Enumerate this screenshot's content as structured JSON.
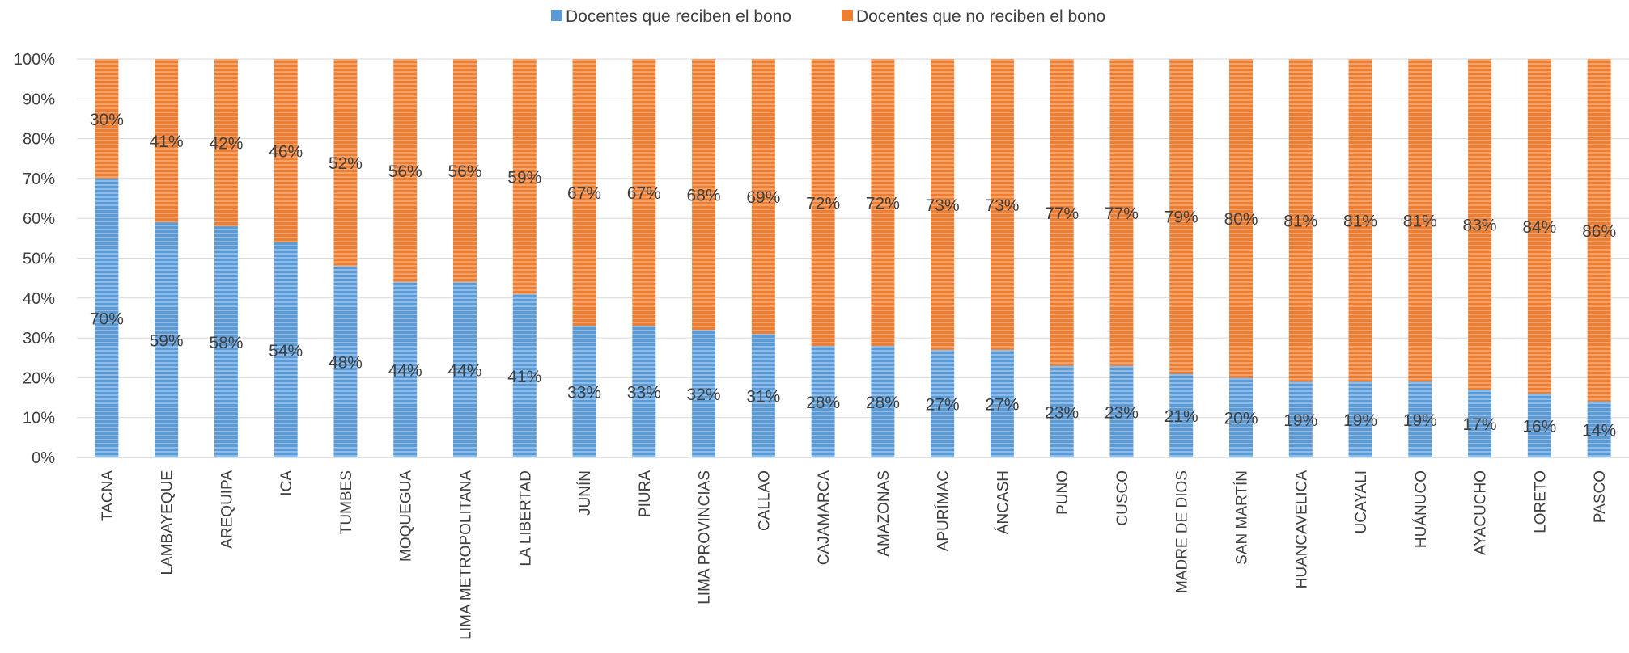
{
  "chart_data": {
    "type": "bar",
    "stacked": true,
    "percent_stacked": true,
    "categories": [
      "TACNA",
      "LAMBAYEQUE",
      "AREQUIPA",
      "ICA",
      "TUMBES",
      "MOQUEGUA",
      "LIMA METROPOLITANA",
      "LA LIBERTAD",
      "JUNÍN",
      "PIURA",
      "LIMA PROVINCIAS",
      "CALLAO",
      "CAJAMARCA",
      "AMAZONAS",
      "APURÍMAC",
      "ÁNCASH",
      "PUNO",
      "CUSCO",
      "MADRE DE DIOS",
      "SAN MARTÍN",
      "HUANCAVELICA",
      "UCAYALI",
      "HUÁNUCO",
      "AYACUCHO",
      "LORETO",
      "PASCO"
    ],
    "series": [
      {
        "name": "Docentes que reciben el bono",
        "color": "#5b9bd5",
        "values": [
          70,
          59,
          58,
          54,
          48,
          44,
          44,
          41,
          33,
          33,
          32,
          31,
          28,
          28,
          27,
          27,
          23,
          23,
          21,
          20,
          19,
          19,
          19,
          17,
          16,
          14
        ],
        "labels": [
          "70%",
          "59%",
          "58%",
          "54%",
          "48%",
          "44%",
          "44%",
          "41%",
          "33%",
          "33%",
          "32%",
          "31%",
          "28%",
          "28%",
          "27%",
          "27%",
          "23%",
          "23%",
          "21%",
          "20%",
          "19%",
          "19%",
          "19%",
          "17%",
          "16%",
          "14%"
        ]
      },
      {
        "name": "Docentes que no reciben el bono",
        "color": "#ed7d31",
        "values": [
          30,
          41,
          42,
          46,
          52,
          56,
          56,
          59,
          67,
          67,
          68,
          69,
          72,
          72,
          73,
          73,
          77,
          77,
          79,
          80,
          81,
          81,
          81,
          83,
          84,
          86
        ],
        "labels": [
          "30%",
          "41%",
          "42%",
          "46%",
          "52%",
          "56%",
          "56%",
          "59%",
          "67%",
          "67%",
          "68%",
          "69%",
          "72%",
          "72%",
          "73%",
          "73%",
          "77%",
          "77%",
          "79%",
          "80%",
          "81%",
          "81%",
          "81%",
          "83%",
          "84%",
          "86%"
        ]
      }
    ],
    "y_ticks": [
      "0%",
      "10%",
      "20%",
      "30%",
      "40%",
      "50%",
      "60%",
      "70%",
      "80%",
      "90%",
      "100%"
    ],
    "ylim": [
      0,
      100
    ],
    "grid": true,
    "legend_position": "top",
    "title": "",
    "xlabel": "",
    "ylabel": ""
  }
}
